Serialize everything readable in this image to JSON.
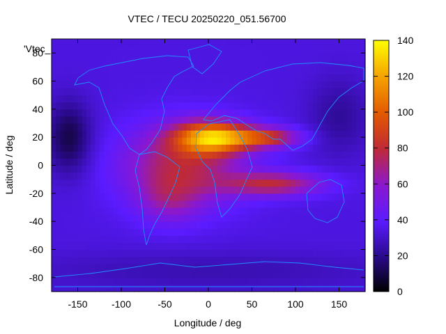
{
  "chart_data": {
    "type": "heatmap",
    "title": "VTEC / TECU 20250220_051.56700",
    "xlabel": "Longitude / deg",
    "ylabel": "Latitude / deg",
    "key_label": "'Vtec_",
    "xlim": [
      -180,
      180
    ],
    "ylim": [
      -90,
      90
    ],
    "x_ticks": [
      -150,
      -100,
      -50,
      0,
      50,
      100,
      150
    ],
    "y_ticks": [
      -80,
      -60,
      -40,
      -20,
      0,
      20,
      40,
      60,
      80
    ],
    "colorbar": {
      "min": 0,
      "max": 140,
      "ticks": [
        0,
        20,
        40,
        60,
        80,
        100,
        120,
        140
      ]
    },
    "field": {
      "background_tecu": 34,
      "enhancements": [
        {
          "lon": 5,
          "lat": 20,
          "sigma_lon": 30,
          "sigma_lat": 8,
          "amp": 80
        },
        {
          "lon": 65,
          "lat": 20,
          "sigma_lon": 28,
          "sigma_lat": 5,
          "amp": 48
        },
        {
          "lon": 75,
          "lat": -13,
          "sigma_lon": 40,
          "sigma_lat": 6,
          "amp": 42
        },
        {
          "lon": -30,
          "lat": 0,
          "sigma_lon": 48,
          "sigma_lat": 20,
          "amp": 42
        },
        {
          "lon": -45,
          "lat": -25,
          "sigma_lon": 25,
          "sigma_lat": 12,
          "amp": 18
        }
      ],
      "depletions": [
        {
          "lon": -160,
          "lat": 20,
          "sigma_lon": 18,
          "sigma_lat": 18,
          "amp": -24
        },
        {
          "lon": 150,
          "lat": 35,
          "sigma_lon": 25,
          "sigma_lat": 20,
          "amp": -12
        },
        {
          "lon": 0,
          "lat": -75,
          "sigma_lon": 160,
          "sigma_lat": 10,
          "amp": -8
        }
      ]
    }
  }
}
